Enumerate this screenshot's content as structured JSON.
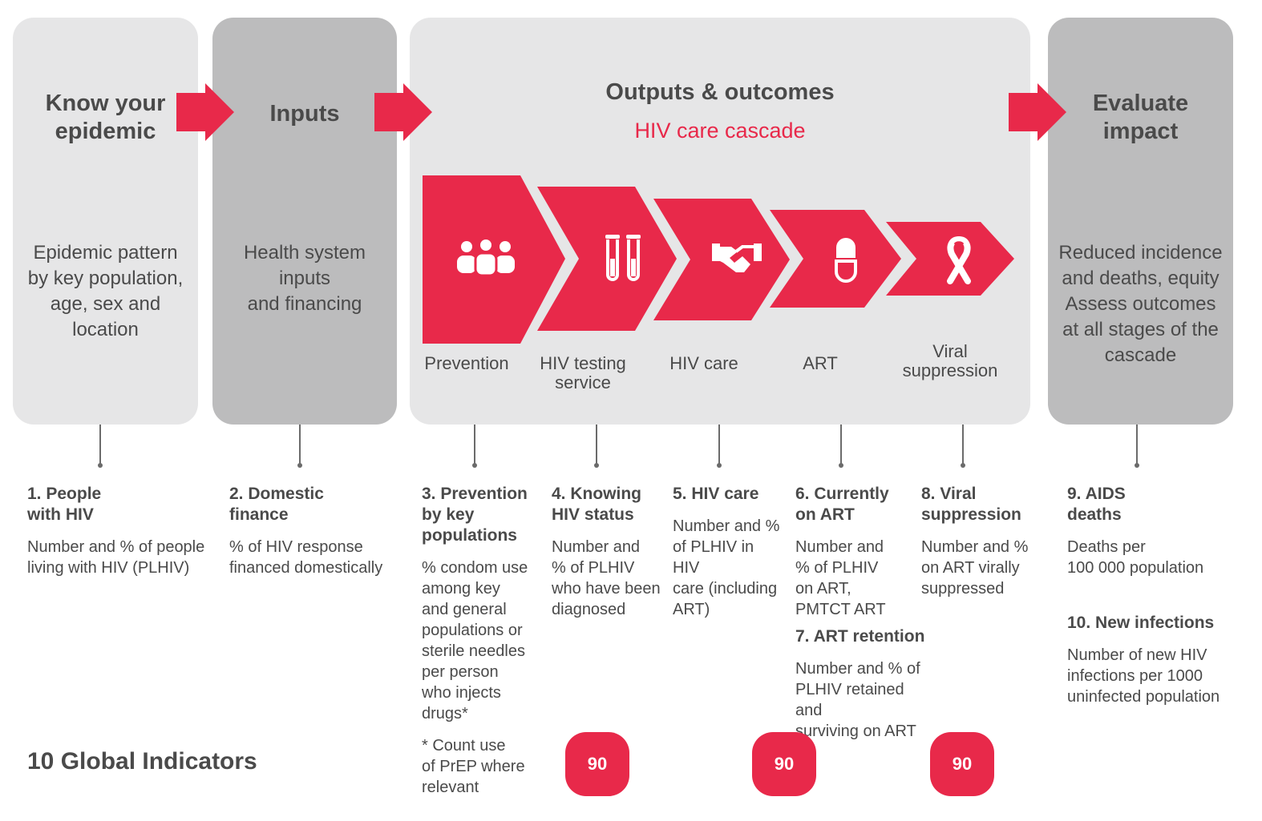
{
  "panels": {
    "know": {
      "title": "Know your\nepidemic",
      "body": "Epidemic pattern\nby key population,\nage, sex and\nlocation"
    },
    "inputs": {
      "title": "Inputs",
      "body": "Health system\ninputs\nand financing"
    },
    "outputs": {
      "title": "Outputs & outcomes",
      "subtitle": "HIV care cascade"
    },
    "evaluate": {
      "title": "Evaluate\nimpact",
      "body": "Reduced incidence\nand deaths, equity\nAssess outcomes\nat all stages of the\ncascade"
    }
  },
  "cascade": [
    {
      "label": "Prevention",
      "icon": "people-group-icon"
    },
    {
      "label": "HIV testing\nservice",
      "icon": "test-tubes-icon"
    },
    {
      "label": "HIV care",
      "icon": "handshake-icon"
    },
    {
      "label": "ART",
      "icon": "pill-capsule-icon"
    },
    {
      "label": "Viral\nsuppression",
      "icon": "awareness-ribbon-icon"
    }
  ],
  "indicators": [
    {
      "title": "1. People\nwith HIV",
      "body": "Number and % of people\nliving with HIV (PLHIV)"
    },
    {
      "title": "2. Domestic\nfinance",
      "body": "% of HIV response\nfinanced domestically"
    },
    {
      "title": "3. Prevention\nby key\npopulations",
      "body": "% condom use\namong key\nand general\npopulations or\nsterile needles\nper person\nwho injects\ndrugs*",
      "note": "* Count use\nof PrEP where\nrelevant"
    },
    {
      "title": "4. Knowing\nHIV status",
      "body": "Number and\n% of PLHIV\nwho have been\ndiagnosed"
    },
    {
      "title": "5. HIV care",
      "body": "Number and %\nof PLHIV in HIV\ncare (including\nART)"
    },
    {
      "title": "6. Currently\non ART",
      "body": "Number and\n% of PLHIV\non ART,\nPMTCT ART"
    },
    {
      "title": "7. ART retention",
      "body": "Number and %  of\nPLHIV retained and\nsurviving on ART"
    },
    {
      "title": "8. Viral\nsuppression",
      "body": "Number and %\non ART virally\nsuppressed"
    },
    {
      "title": "9. AIDS\ndeaths",
      "body": "Deaths per\n100 000 population"
    },
    {
      "title": "10. New infections",
      "body": "Number of new HIV\ninfections per 1000\nuninfected population"
    }
  ],
  "badges": [
    "90",
    "90",
    "90"
  ],
  "footer": {
    "title": "10 Global Indicators"
  },
  "colors": {
    "accent": "#e8294a",
    "light_panel": "#e6e6e7",
    "dark_panel": "#bcbcbd",
    "text": "#4a4a4a"
  }
}
